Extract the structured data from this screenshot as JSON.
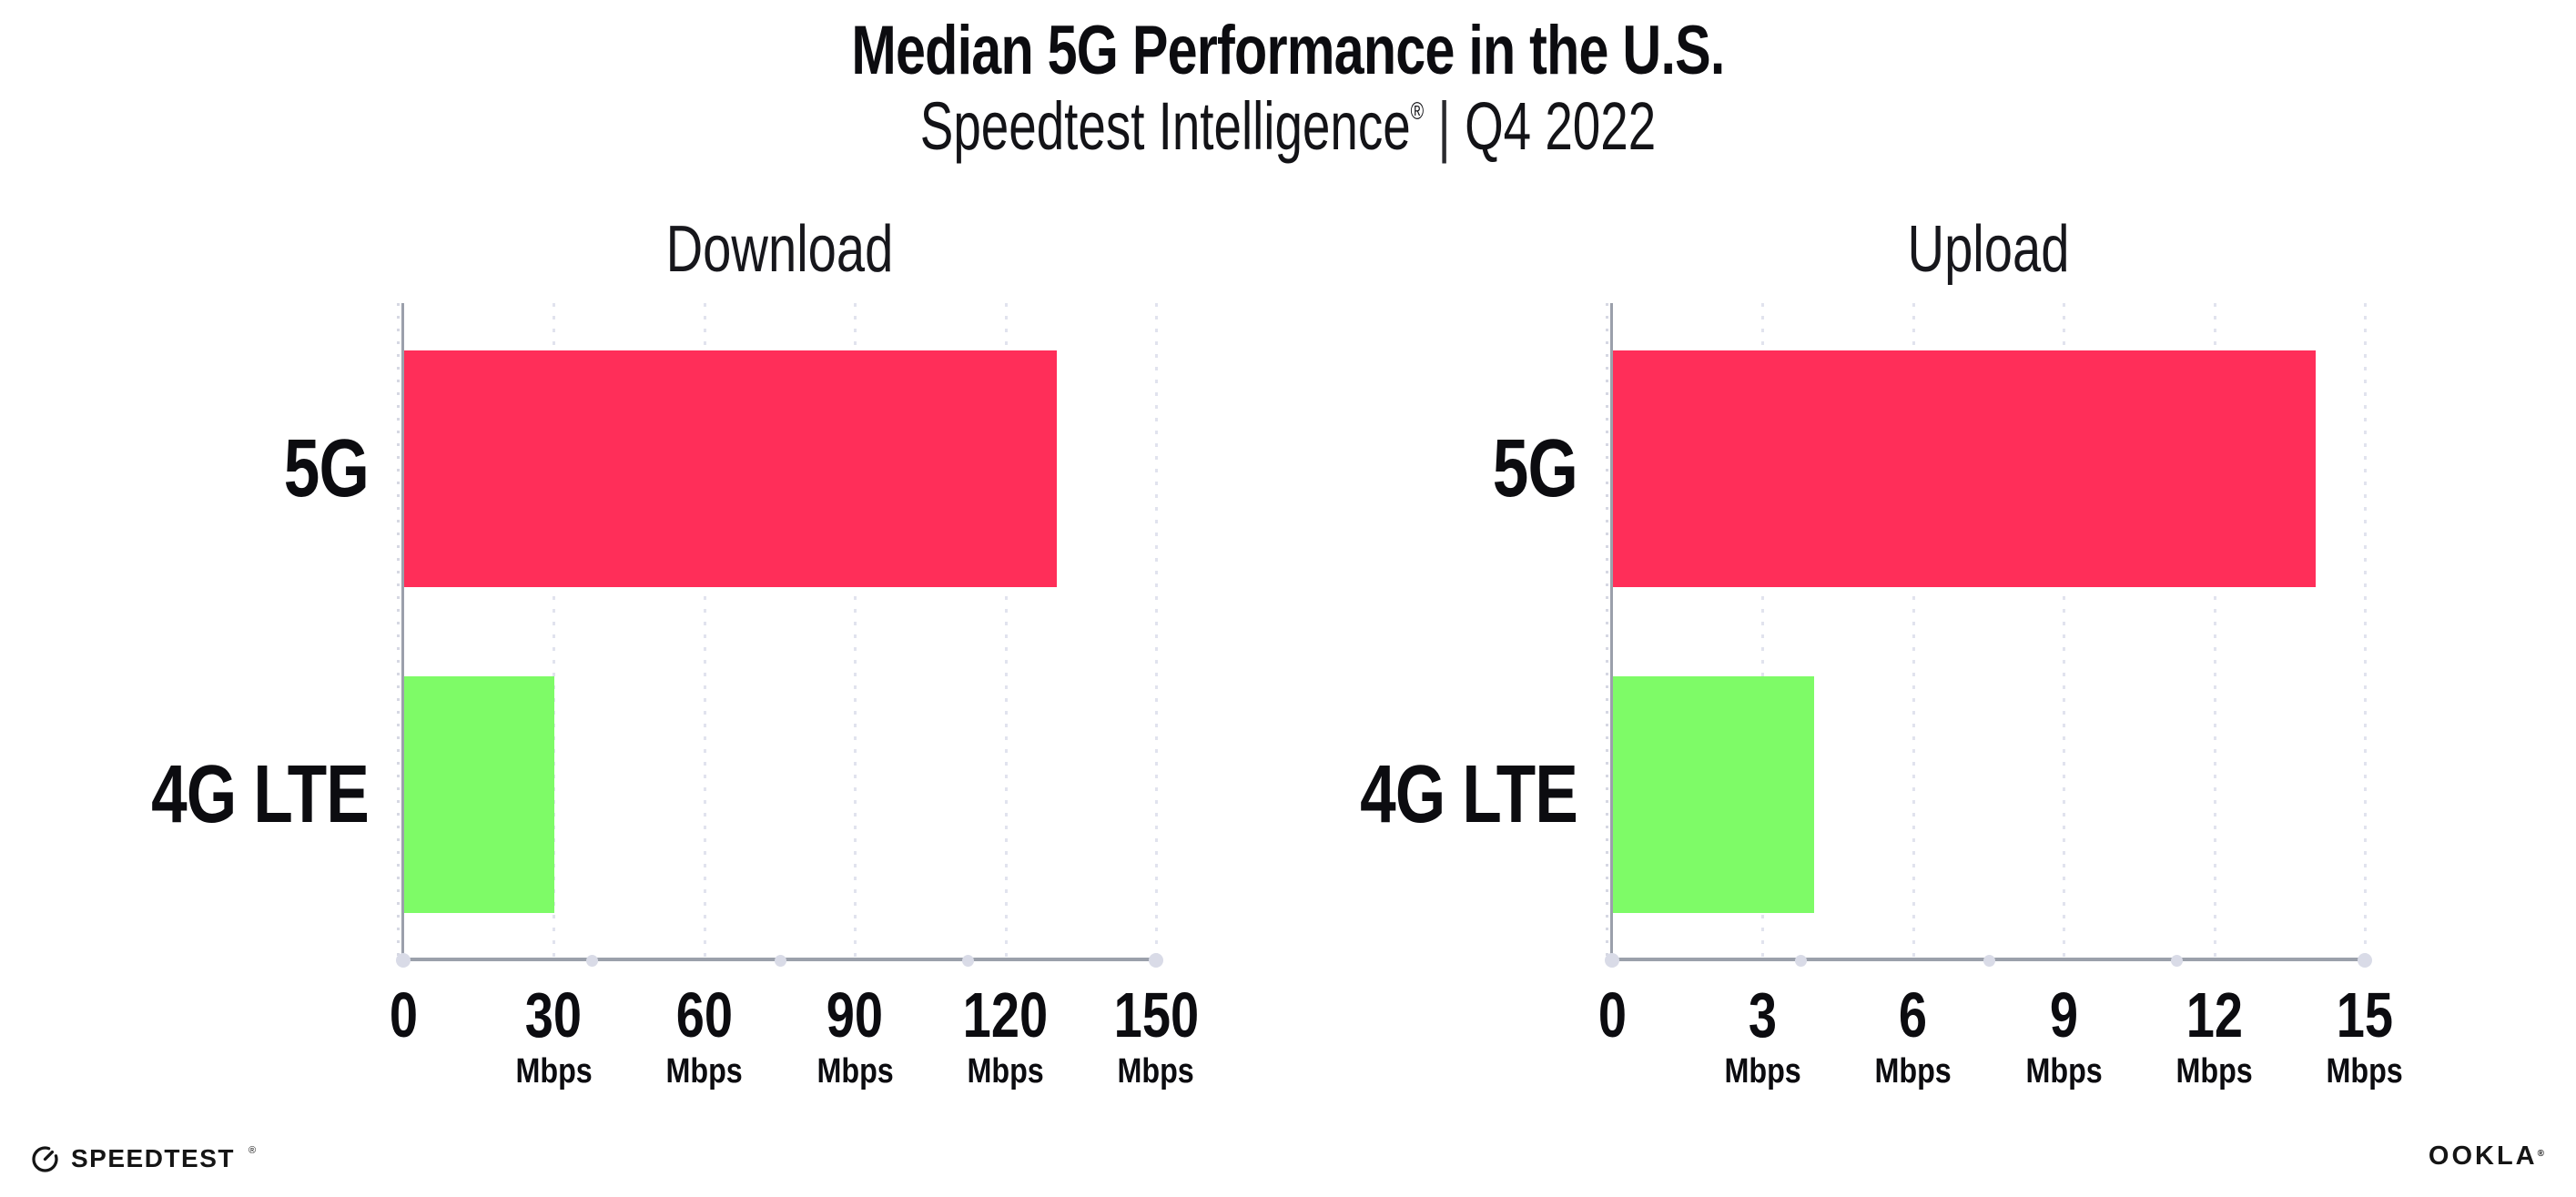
{
  "header": {
    "title": "Median 5G Performance in the U.S.",
    "subtitle_brand": "Speedtest Intelligence",
    "subtitle_reg": "®",
    "subtitle_sep": "|",
    "subtitle_period": "Q4 2022"
  },
  "footer": {
    "speedtest_label": "SPEEDTEST",
    "speedtest_mark": "®",
    "ookla_label": "OOKLA",
    "ookla_mark": "®"
  },
  "colors": {
    "bar_5g_pink": "#ff2e59",
    "bar_4g_green": "#7efb67",
    "axis_gray": "#9ba0ab",
    "grid_dot": "#e1e3ee",
    "text": "#0c0c10"
  },
  "chart_data": [
    {
      "type": "bar",
      "orientation": "horizontal",
      "title": "Download",
      "categories": [
        "5G",
        "4G LTE"
      ],
      "values": [
        130,
        30
      ],
      "unit": "Mbps",
      "xlim": [
        0,
        150
      ],
      "xticks": [
        0,
        30,
        60,
        90,
        120,
        150
      ],
      "bar_colors": [
        "#ff2e59",
        "#7efb67"
      ],
      "xlabel": "",
      "ylabel": "",
      "grid": "vertical dotted",
      "legend": "none"
    },
    {
      "type": "bar",
      "orientation": "horizontal",
      "title": "Upload",
      "categories": [
        "5G",
        "4G LTE"
      ],
      "values": [
        14,
        4
      ],
      "unit": "Mbps",
      "xlim": [
        0,
        15
      ],
      "xticks": [
        0,
        3,
        6,
        9,
        12,
        15
      ],
      "bar_colors": [
        "#ff2e59",
        "#7efb67"
      ],
      "xlabel": "",
      "ylabel": "",
      "grid": "vertical dotted",
      "legend": "none"
    }
  ]
}
